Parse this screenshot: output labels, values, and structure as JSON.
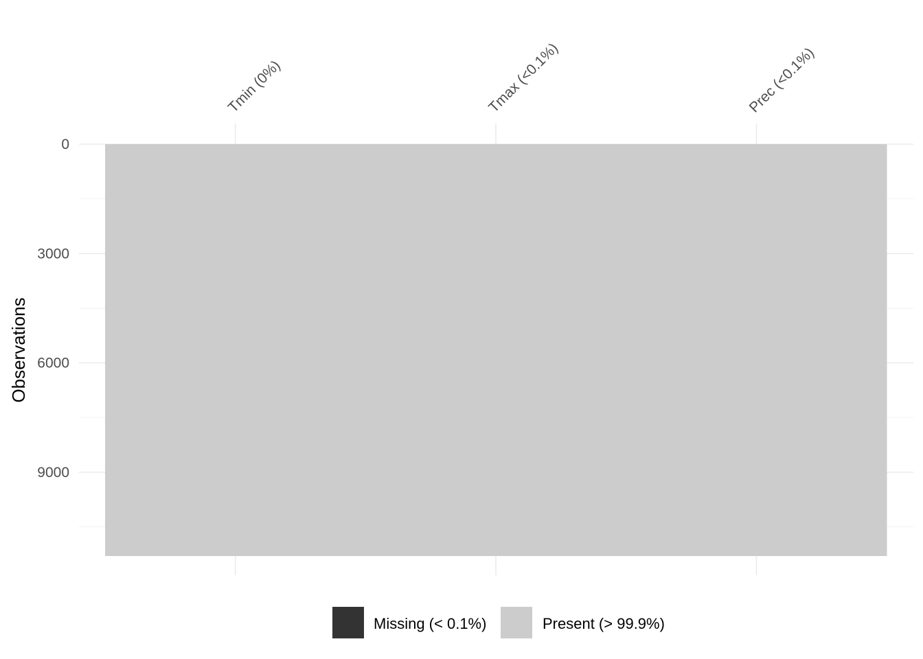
{
  "chart_data": {
    "type": "heatmap",
    "title": "",
    "xlabel": "",
    "ylabel": "Observations",
    "columns": [
      "Tmin (0%)",
      "Tmax (<0.1%)",
      "Prec (<0.1%)"
    ],
    "y_ticks": [
      0,
      3000,
      6000,
      9000
    ],
    "ylim": [
      0,
      11300
    ],
    "n_observations": 11300,
    "grid": true,
    "legend_position": "bottom",
    "legend": [
      {
        "label": "Missing (< 0.1%)",
        "color": "#333333"
      },
      {
        "label": "Present (> 99.9%)",
        "color": "#cccccc"
      }
    ],
    "cells": [
      {
        "column": "Tmin (0%)",
        "state": "present"
      },
      {
        "column": "Tmax (<0.1%)",
        "state": "present"
      },
      {
        "column": "Prec (<0.1%)",
        "state": "present"
      }
    ]
  }
}
